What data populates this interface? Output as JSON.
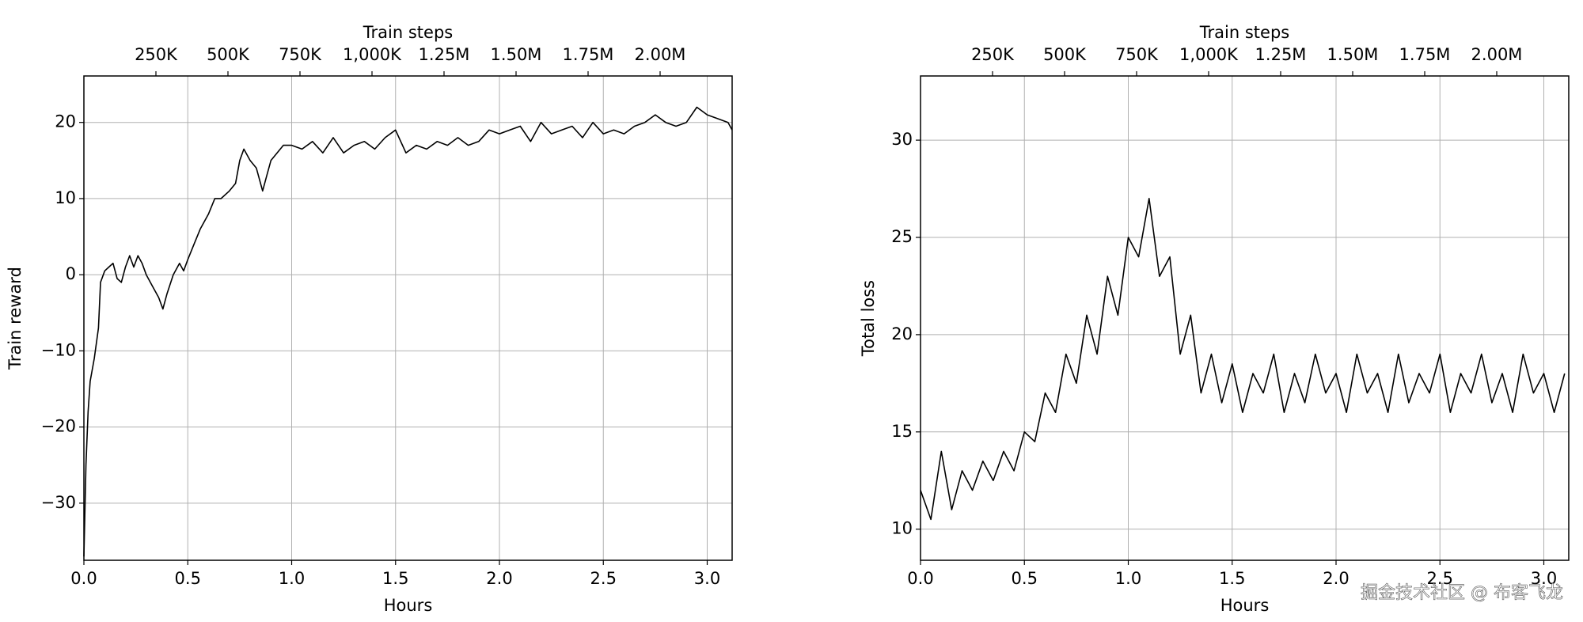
{
  "chart_data": [
    {
      "type": "line",
      "x_label": "Hours",
      "x2_label": "Train steps",
      "y_label": "Train reward",
      "color": "#000000",
      "grid": true,
      "x": [
        0,
        0.01,
        0.02,
        0.03,
        0.05,
        0.07,
        0.08,
        0.1,
        0.12,
        0.14,
        0.16,
        0.18,
        0.2,
        0.22,
        0.24,
        0.26,
        0.28,
        0.3,
        0.33,
        0.36,
        0.38,
        0.4,
        0.43,
        0.46,
        0.48,
        0.5,
        0.53,
        0.56,
        0.6,
        0.63,
        0.66,
        0.7,
        0.73,
        0.75,
        0.77,
        0.8,
        0.83,
        0.86,
        0.88,
        0.9,
        0.93,
        0.96,
        1.0,
        1.05,
        1.1,
        1.15,
        1.2,
        1.25,
        1.3,
        1.35,
        1.4,
        1.45,
        1.5,
        1.55,
        1.6,
        1.65,
        1.7,
        1.75,
        1.8,
        1.85,
        1.9,
        1.95,
        2.0,
        2.05,
        2.1,
        2.15,
        2.2,
        2.25,
        2.3,
        2.35,
        2.4,
        2.45,
        2.5,
        2.55,
        2.6,
        2.65,
        2.7,
        2.75,
        2.8,
        2.85,
        2.9,
        2.95,
        3.0,
        3.05,
        3.1,
        3.12
      ],
      "values": [
        -37,
        -25,
        -18,
        -14,
        -11,
        -7,
        -1,
        0.5,
        1,
        1.5,
        -0.5,
        -1,
        1,
        2.5,
        1,
        2.5,
        1.5,
        0,
        -1.5,
        -3,
        -4.5,
        -2.5,
        0,
        1.5,
        0.5,
        2,
        4,
        6,
        8,
        10,
        10,
        11,
        12,
        15,
        16.5,
        15,
        14,
        11,
        13,
        15,
        16,
        17,
        17,
        16.5,
        17.5,
        16,
        18,
        16,
        17,
        17.5,
        16.5,
        18,
        19,
        16,
        17,
        16.5,
        17.5,
        17,
        18,
        17,
        17.5,
        19,
        18.5,
        19,
        19.5,
        17.5,
        20,
        18.5,
        19,
        19.5,
        18,
        20,
        18.5,
        19,
        18.5,
        19.5,
        20,
        21,
        20,
        19.5,
        20,
        22,
        21,
        20.5,
        20,
        19
      ],
      "xlim": [
        0,
        3.12
      ],
      "xticks": [
        {
          "value": 0,
          "label": "0.0"
        },
        0.5,
        {
          "value": 1,
          "label": "1.0"
        },
        1.5,
        {
          "value": 2,
          "label": "2.0"
        },
        2.5,
        {
          "value": 3,
          "label": "3.0"
        }
      ],
      "x2lim": [
        0,
        2250000
      ],
      "x2ticks": [
        {
          "value": 250000,
          "label": "250K"
        },
        {
          "value": 500000,
          "label": "500K"
        },
        {
          "value": 750000,
          "label": "750K"
        },
        {
          "value": 1000000,
          "label": "1,000K"
        },
        {
          "value": 1250000,
          "label": "1.25M"
        },
        {
          "value": 1500000,
          "label": "1.50M"
        },
        {
          "value": 1750000,
          "label": "1.75M"
        },
        {
          "value": 2000000,
          "label": "2.00M"
        }
      ],
      "ylim": [
        -37.5,
        26.1
      ],
      "yticks": [
        {
          "value": -30,
          "label": "−30"
        },
        {
          "value": -20,
          "label": "−20"
        },
        {
          "value": -10,
          "label": "−10"
        },
        0,
        10,
        20
      ]
    },
    {
      "type": "line",
      "x_label": "Hours",
      "x2_label": "Train steps",
      "y_label": "Total loss",
      "color": "#000000",
      "grid": true,
      "x": [
        0,
        0.05,
        0.1,
        0.15,
        0.2,
        0.25,
        0.3,
        0.35,
        0.4,
        0.45,
        0.5,
        0.55,
        0.6,
        0.65,
        0.7,
        0.75,
        0.8,
        0.85,
        0.9,
        0.95,
        1.0,
        1.05,
        1.1,
        1.15,
        1.2,
        1.25,
        1.3,
        1.35,
        1.4,
        1.45,
        1.5,
        1.55,
        1.6,
        1.65,
        1.7,
        1.75,
        1.8,
        1.85,
        1.9,
        1.95,
        2.0,
        2.05,
        2.1,
        2.15,
        2.2,
        2.25,
        2.3,
        2.35,
        2.4,
        2.45,
        2.5,
        2.55,
        2.6,
        2.65,
        2.7,
        2.75,
        2.8,
        2.85,
        2.9,
        2.95,
        3.0,
        3.05,
        3.1
      ],
      "values": [
        12,
        10.5,
        14,
        11,
        13,
        12,
        13.5,
        12.5,
        14,
        13,
        15,
        14.5,
        17,
        16,
        19,
        17.5,
        21,
        19,
        23,
        21,
        25,
        24,
        27,
        23,
        24,
        19,
        21,
        17,
        19,
        16.5,
        18.5,
        16,
        18,
        17,
        19,
        16,
        18,
        16.5,
        19,
        17,
        18,
        16,
        19,
        17,
        18,
        16,
        19,
        16.5,
        18,
        17,
        19,
        16,
        18,
        17,
        19,
        16.5,
        18,
        16,
        19,
        17,
        18,
        16,
        18
      ],
      "xlim": [
        0,
        3.12
      ],
      "xticks": [
        {
          "value": 0,
          "label": "0.0"
        },
        0.5,
        {
          "value": 1,
          "label": "1.0"
        },
        1.5,
        {
          "value": 2,
          "label": "2.0"
        },
        2.5,
        {
          "value": 3,
          "label": "3.0"
        }
      ],
      "x2lim": [
        0,
        2250000
      ],
      "x2ticks": [
        {
          "value": 250000,
          "label": "250K"
        },
        {
          "value": 500000,
          "label": "500K"
        },
        {
          "value": 750000,
          "label": "750K"
        },
        {
          "value": 1000000,
          "label": "1,000K"
        },
        {
          "value": 1250000,
          "label": "1.25M"
        },
        {
          "value": 1500000,
          "label": "1.50M"
        },
        {
          "value": 1750000,
          "label": "1.75M"
        },
        {
          "value": 2000000,
          "label": "2.00M"
        }
      ],
      "ylim": [
        8.4,
        33.3
      ],
      "yticks": [
        10,
        15,
        20,
        25,
        30
      ]
    }
  ],
  "watermark": "掘金技术社区 @ 布客飞龙"
}
